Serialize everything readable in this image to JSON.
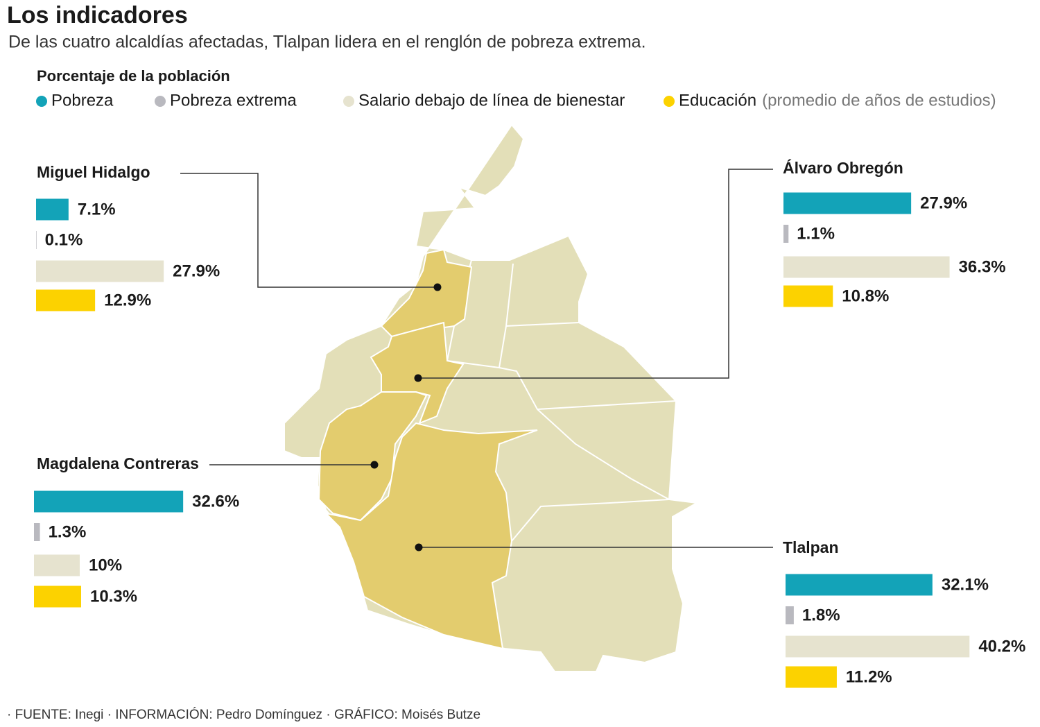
{
  "title": "Los indicadores",
  "subtitle": "De las cuatro alcaldías afectadas, Tlalpan lidera en el renglón de pobreza extrema.",
  "legend": {
    "title": "Porcentaje de la población",
    "items": [
      {
        "name": "Pobreza",
        "color": "#13a3b8"
      },
      {
        "name": "Pobreza extrema",
        "color": "#b9b9bf"
      },
      {
        "name": "Salario debajo de línea de bienestar",
        "color": "#e6e3cf"
      },
      {
        "name": "Educación",
        "color": "#fcd200",
        "note": "(promedio de años de estudios)"
      }
    ]
  },
  "chart_data": [
    {
      "type": "bar",
      "title": "Miguel Hidalgo",
      "values": [
        7.1,
        0.1,
        27.9,
        12.9
      ],
      "value_labels": [
        "7.1%",
        "0.1%",
        "27.9%",
        "12.9%"
      ]
    },
    {
      "type": "bar",
      "title": "Álvaro Obregón",
      "values": [
        27.9,
        1.1,
        36.3,
        10.8
      ],
      "value_labels": [
        "27.9%",
        "1.1%",
        "36.3%",
        "10.8%"
      ]
    },
    {
      "type": "bar",
      "title": "Magdalena Contreras",
      "values": [
        32.6,
        1.3,
        10,
        10.3
      ],
      "value_labels": [
        "32.6%",
        "1.3%",
        "10%",
        "10.3%"
      ]
    },
    {
      "type": "bar",
      "title": "Tlalpan",
      "values": [
        32.1,
        1.8,
        40.2,
        11.2
      ],
      "value_labels": [
        "32.1%",
        "1.8%",
        "40.2%",
        "11.2%"
      ]
    }
  ],
  "source": "· FUENTE: Inegi · INFORMACIÓN: Pedro Domínguez · GRÁFICO: Moisés Butze"
}
